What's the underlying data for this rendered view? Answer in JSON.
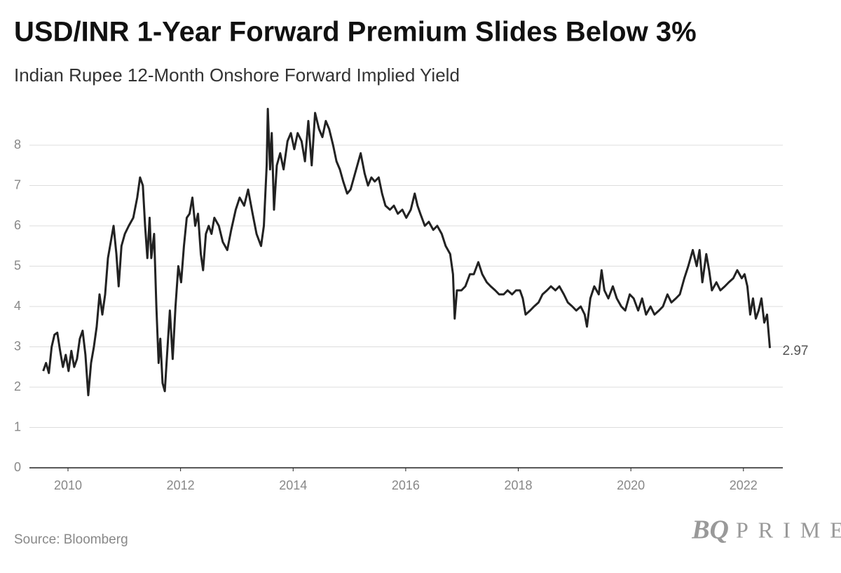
{
  "chart_data": {
    "type": "line",
    "title": "USD/INR 1-Year Forward Premium Slides Below 3%",
    "subtitle": "Indian Rupee 12-Month Onshore Forward Implied Yield",
    "source": "Source: Bloomberg",
    "brand_mark": "BQ",
    "brand_name": "PRIME",
    "xlim": [
      2009.315,
      2022.7
    ],
    "xticks": [
      2010,
      2012,
      2014,
      2016,
      2018,
      2020,
      2022
    ],
    "ylim": [
      0,
      9
    ],
    "yticks": [
      0,
      1,
      2,
      3,
      4,
      5,
      6,
      7,
      8
    ],
    "grid": true,
    "x": [
      2009.56,
      2009.61,
      2009.66,
      2009.71,
      2009.76,
      2009.81,
      2009.86,
      2009.91,
      2009.96,
      2010.01,
      2010.06,
      2010.11,
      2010.16,
      2010.21,
      2010.26,
      2010.31,
      2010.36,
      2010.41,
      2010.46,
      2010.51,
      2010.56,
      2010.61,
      2010.66,
      2010.71,
      2010.76,
      2010.81,
      2010.86,
      2010.9,
      2010.95,
      2011.01,
      2011.08,
      2011.16,
      2011.23,
      2011.28,
      2011.33,
      2011.37,
      2011.41,
      2011.45,
      2011.48,
      2011.53,
      2011.57,
      2011.61,
      2011.64,
      2011.68,
      2011.72,
      2011.76,
      2011.81,
      2011.86,
      2011.91,
      2011.96,
      2012.01,
      2012.06,
      2012.11,
      2012.16,
      2012.21,
      2012.26,
      2012.31,
      2012.36,
      2012.4,
      2012.45,
      2012.5,
      2012.55,
      2012.6,
      2012.68,
      2012.75,
      2012.83,
      2012.9,
      2012.98,
      2013.05,
      2013.13,
      2013.2,
      2013.28,
      2013.35,
      2013.43,
      2013.48,
      2013.53,
      2013.55,
      2013.59,
      2013.62,
      2013.66,
      2013.71,
      2013.77,
      2013.83,
      2013.9,
      2013.96,
      2014.02,
      2014.08,
      2014.15,
      2014.21,
      2014.27,
      2014.33,
      2014.39,
      2014.46,
      2014.52,
      2014.58,
      2014.64,
      2014.71,
      2014.77,
      2014.83,
      2014.89,
      2014.96,
      2015.02,
      2015.08,
      2015.14,
      2015.2,
      2015.27,
      2015.33,
      2015.39,
      2015.45,
      2015.52,
      2015.58,
      2015.64,
      2015.72,
      2015.79,
      2015.86,
      2015.94,
      2016.01,
      2016.09,
      2016.16,
      2016.21,
      2016.26,
      2016.34,
      2016.41,
      2016.49,
      2016.56,
      2016.64,
      2016.71,
      2016.79,
      2016.84,
      2016.87,
      2016.91,
      2016.99,
      2017.06,
      2017.14,
      2017.21,
      2017.29,
      2017.36,
      2017.44,
      2017.51,
      2017.59,
      2017.66,
      2017.74,
      2017.81,
      2017.89,
      2017.96,
      2018.03,
      2018.08,
      2018.13,
      2018.21,
      2018.28,
      2018.36,
      2018.43,
      2018.51,
      2018.58,
      2018.66,
      2018.73,
      2018.81,
      2018.88,
      2018.96,
      2019.03,
      2019.11,
      2019.18,
      2019.22,
      2019.28,
      2019.35,
      2019.43,
      2019.48,
      2019.53,
      2019.6,
      2019.68,
      2019.75,
      2019.83,
      2019.9,
      2019.98,
      2020.05,
      2020.13,
      2020.2,
      2020.27,
      2020.35,
      2020.42,
      2020.5,
      2020.57,
      2020.65,
      2020.72,
      2020.8,
      2020.87,
      2020.95,
      2021.02,
      2021.1,
      2021.17,
      2021.22,
      2021.27,
      2021.34,
      2021.39,
      2021.44,
      2021.52,
      2021.59,
      2021.67,
      2021.74,
      2021.82,
      2021.89,
      2021.97,
      2022.02,
      2022.07,
      2022.12,
      2022.17,
      2022.22,
      2022.27,
      2022.32,
      2022.37,
      2022.42,
      2022.47
    ],
    "series": [
      {
        "color": "#222222",
        "values": [
          2.4,
          2.6,
          2.35,
          3.0,
          3.3,
          3.35,
          2.9,
          2.5,
          2.8,
          2.4,
          2.9,
          2.5,
          2.7,
          3.2,
          3.4,
          2.8,
          1.8,
          2.6,
          3.0,
          3.5,
          4.3,
          3.8,
          4.3,
          5.2,
          5.6,
          6.0,
          5.3,
          4.5,
          5.5,
          5.8,
          6.0,
          6.2,
          6.7,
          7.2,
          7.0,
          6.0,
          5.2,
          6.2,
          5.2,
          5.8,
          4.0,
          2.6,
          3.2,
          2.1,
          1.9,
          2.8,
          3.9,
          2.7,
          4.0,
          5.0,
          4.6,
          5.5,
          6.2,
          6.3,
          6.7,
          6.0,
          6.3,
          5.3,
          4.9,
          5.8,
          6.0,
          5.8,
          6.2,
          6.0,
          5.6,
          5.4,
          5.9,
          6.4,
          6.7,
          6.5,
          6.9,
          6.3,
          5.8,
          5.5,
          6.0,
          7.5,
          8.9,
          7.4,
          8.3,
          6.4,
          7.5,
          7.8,
          7.4,
          8.1,
          8.3,
          7.9,
          8.3,
          8.1,
          7.6,
          8.6,
          7.5,
          8.8,
          8.4,
          8.2,
          8.6,
          8.4,
          8.0,
          7.6,
          7.4,
          7.1,
          6.8,
          6.9,
          7.2,
          7.5,
          7.8,
          7.3,
          7.0,
          7.2,
          7.1,
          7.2,
          6.8,
          6.5,
          6.4,
          6.5,
          6.3,
          6.4,
          6.2,
          6.4,
          6.8,
          6.5,
          6.3,
          6.0,
          6.1,
          5.9,
          6.0,
          5.8,
          5.5,
          5.3,
          4.8,
          3.7,
          4.4,
          4.4,
          4.5,
          4.8,
          4.8,
          5.1,
          4.8,
          4.6,
          4.5,
          4.4,
          4.3,
          4.3,
          4.4,
          4.3,
          4.4,
          4.4,
          4.2,
          3.8,
          3.9,
          4.0,
          4.1,
          4.3,
          4.4,
          4.5,
          4.4,
          4.5,
          4.3,
          4.1,
          4.0,
          3.9,
          4.0,
          3.8,
          3.5,
          4.2,
          4.5,
          4.3,
          4.9,
          4.4,
          4.2,
          4.5,
          4.2,
          4.0,
          3.9,
          4.3,
          4.2,
          3.9,
          4.2,
          3.8,
          4.0,
          3.8,
          3.9,
          4.0,
          4.3,
          4.1,
          4.2,
          4.3,
          4.7,
          5.0,
          5.4,
          5.0,
          5.4,
          4.6,
          5.3,
          4.9,
          4.4,
          4.6,
          4.4,
          4.5,
          4.6,
          4.7,
          4.9,
          4.7,
          4.8,
          4.5,
          3.8,
          4.2,
          3.7,
          3.9,
          4.2,
          3.6,
          3.8,
          2.97
        ]
      }
    ]
  }
}
